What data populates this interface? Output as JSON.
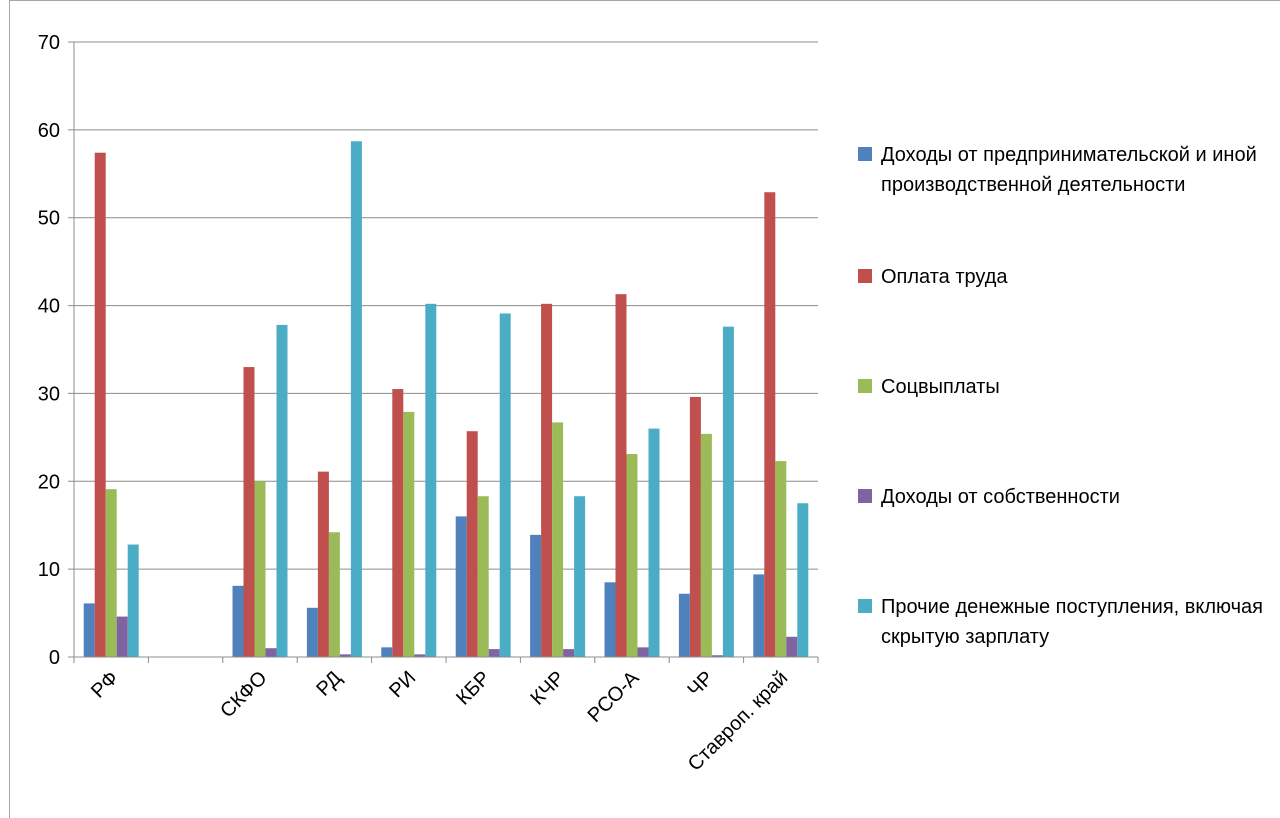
{
  "chart_data": {
    "type": "bar",
    "title": "",
    "xlabel": "",
    "ylabel": "",
    "ylim": [
      0,
      70
    ],
    "yticks": [
      0,
      10,
      20,
      30,
      40,
      50,
      60,
      70
    ],
    "grid": true,
    "legend_position": "right",
    "categories": [
      "РФ",
      "",
      "СКФО",
      "РД",
      "РИ",
      "КБР",
      "КЧР",
      "РСО-А",
      "ЧР",
      "Ставроп. край"
    ],
    "series": [
      {
        "name": "Доходы от предпринимательской и иной производственной деятельности",
        "color": "#4f81bd",
        "values": [
          6.1,
          null,
          8.1,
          5.6,
          1.1,
          16.0,
          13.9,
          8.5,
          7.2,
          9.4
        ]
      },
      {
        "name": "Оплата труда",
        "color": "#c0504d",
        "values": [
          57.4,
          null,
          33.0,
          21.1,
          30.5,
          25.7,
          40.2,
          41.3,
          29.6,
          52.9
        ]
      },
      {
        "name": "Соцвыплаты",
        "color": "#9bbb59",
        "values": [
          19.1,
          null,
          20.0,
          14.2,
          27.9,
          18.3,
          26.7,
          23.1,
          25.4,
          22.3
        ]
      },
      {
        "name": "Доходы от собственности",
        "color": "#8064a2",
        "values": [
          4.6,
          null,
          1.0,
          0.3,
          0.3,
          0.9,
          0.9,
          1.1,
          0.2,
          2.3
        ]
      },
      {
        "name": "Прочие денежные поступления, включая скрытую зарплату",
        "color": "#4bacc6",
        "values": [
          12.8,
          null,
          37.8,
          58.7,
          40.2,
          39.1,
          18.3,
          26.0,
          37.6,
          17.5
        ]
      }
    ]
  }
}
